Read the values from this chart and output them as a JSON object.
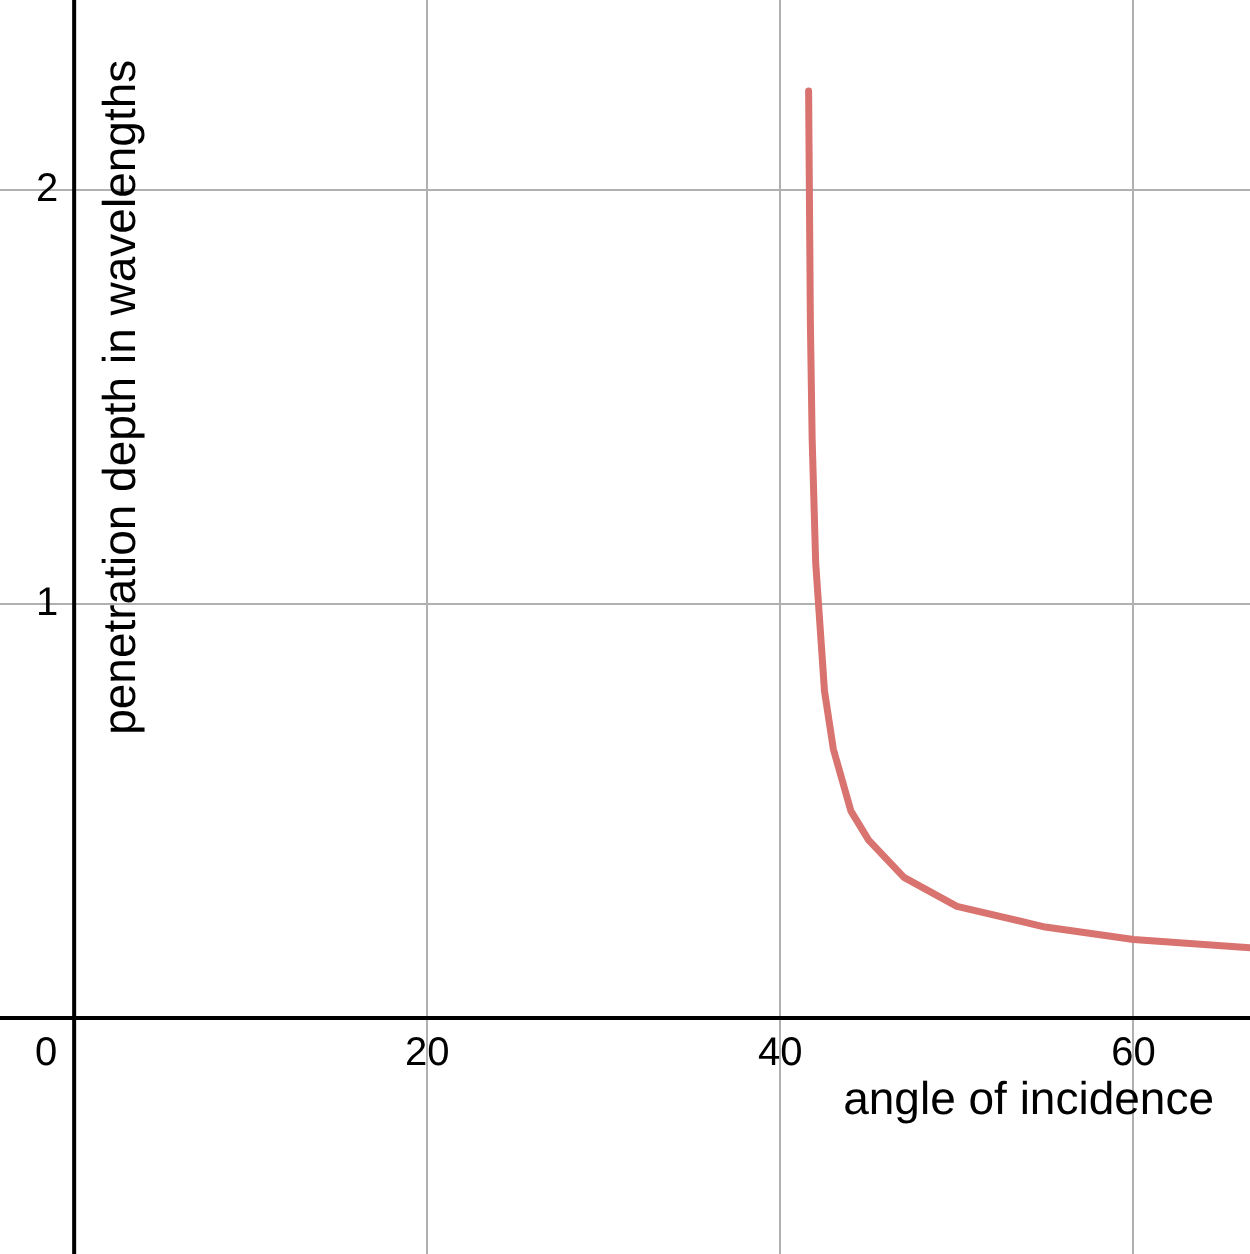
{
  "chart_data": {
    "type": "line",
    "xlabel": "angle of incidence",
    "ylabel": "penetration depth in wavelengths",
    "x": [
      41.6,
      41.7,
      41.8,
      42,
      42.5,
      43,
      44,
      45,
      47,
      50,
      55,
      60,
      66.6
    ],
    "series": [
      {
        "color": "#d9736f",
        "values": [
          2.24,
          1.68,
          1.4,
          1.1,
          0.79,
          0.65,
          0.5,
          0.43,
          0.34,
          0.27,
          0.22,
          0.19,
          0.17
        ]
      }
    ],
    "xlim": [
      -4.2,
      66.6
    ],
    "ylim": [
      -0.57,
      2.46
    ],
    "xticks": [
      0,
      20,
      40,
      60
    ],
    "yticks": [
      {
        "value": 0,
        "label": null
      },
      1,
      2
    ],
    "grid": true,
    "legend": false,
    "marker": "none",
    "line_style": "solid"
  }
}
